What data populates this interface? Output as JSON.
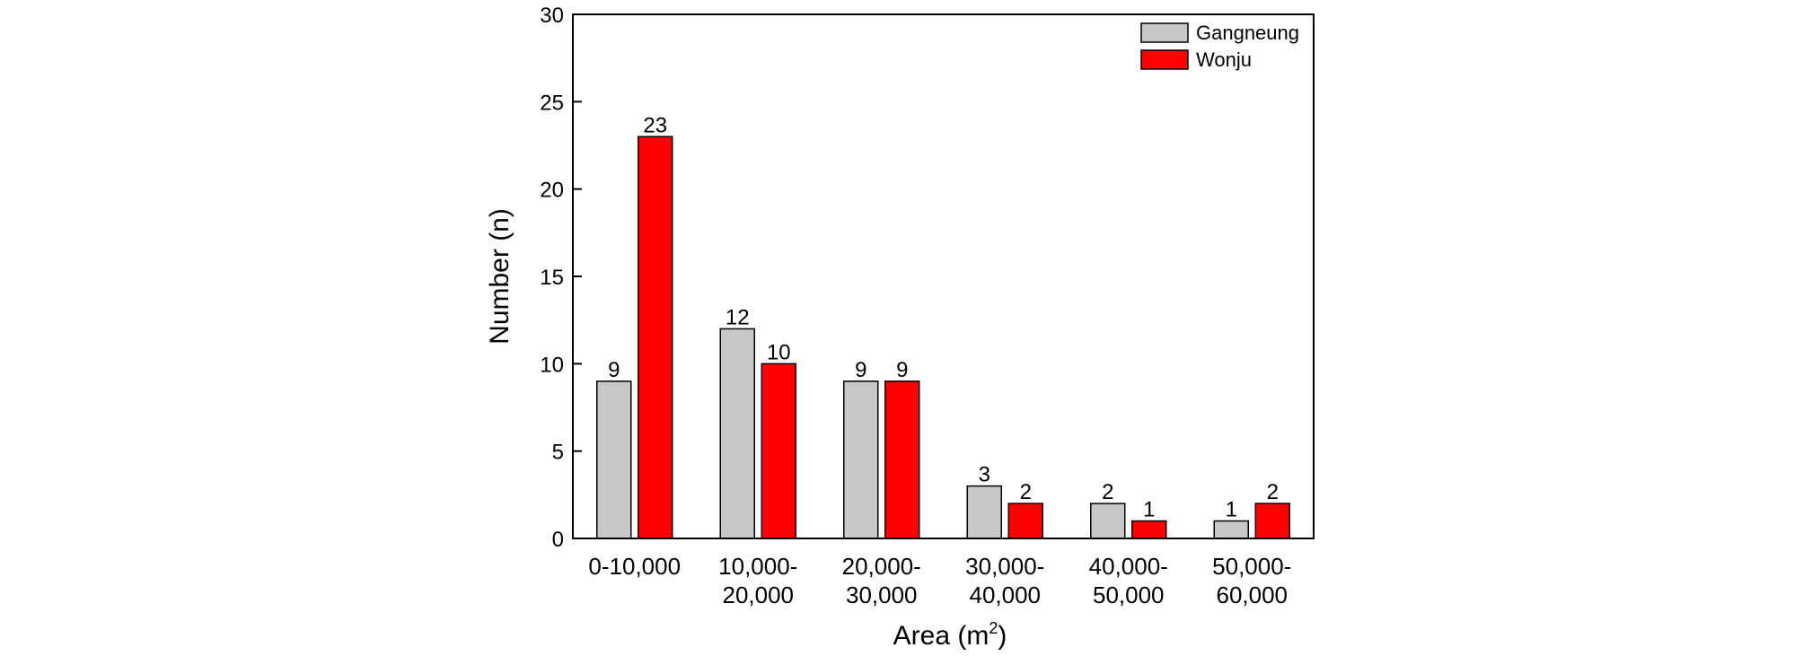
{
  "chart_data": {
    "type": "bar",
    "categories": [
      "0-10,000",
      "10,000-20,000",
      "20,000-30,000",
      "30,000-40,000",
      "40,000-50,000",
      "50,000-60,000"
    ],
    "category_label_lines": [
      [
        "0-10,000"
      ],
      [
        "10,000-",
        "20,000"
      ],
      [
        "20,000-",
        "30,000"
      ],
      [
        "30,000-",
        "40,000"
      ],
      [
        "40,000-",
        "50,000"
      ],
      [
        "50,000-",
        "60,000"
      ]
    ],
    "series": [
      {
        "name": "Gangneung",
        "color": "#c8c8c8",
        "values": [
          9,
          12,
          9,
          3,
          2,
          1
        ]
      },
      {
        "name": "Wonju",
        "color": "#ff0000",
        "values": [
          23,
          10,
          9,
          2,
          1,
          2
        ]
      }
    ],
    "xlabel": "Area (m",
    "xlabel_superscript": "2",
    "xlabel_suffix": ")",
    "ylabel": "Number (n)",
    "ylim": [
      0,
      30
    ],
    "yticks": [
      0,
      5,
      10,
      15,
      20,
      25,
      30
    ],
    "legend_position": "top-right",
    "grid": false,
    "data_labels": true
  }
}
